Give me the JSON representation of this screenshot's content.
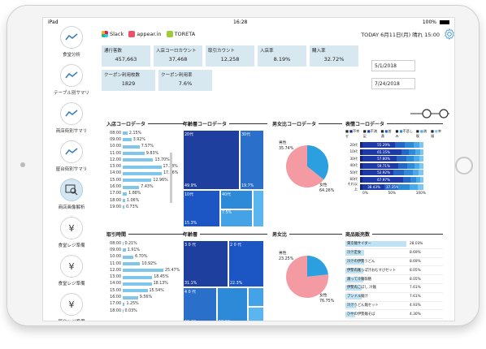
{
  "status": {
    "device": "iPad",
    "time": "16:28",
    "battery": "100%"
  },
  "sidebar": {
    "items": [
      {
        "label": "食堂分析",
        "icon": "trend-icon"
      },
      {
        "label": "テーブル別サマリ",
        "icon": "trend-icon"
      },
      {
        "label": "商店街別サマリ",
        "icon": "trend-icon"
      },
      {
        "label": "屋台街別サマリ",
        "icon": "trend-icon"
      },
      {
        "label": "商店画像解析",
        "icon": "image-search-icon",
        "active": true
      },
      {
        "label": "食堂レジ準備",
        "icon": "yen-icon"
      },
      {
        "label": "食堂レジ準備",
        "icon": "yen-icon"
      },
      {
        "label": "屋台レジ準備",
        "icon": "yen-icon"
      }
    ]
  },
  "header": {
    "brands": [
      "Slack",
      "appear.in",
      "TORETA"
    ],
    "date_text": "TODAY 6月11日(月) 晴れ 15:00"
  },
  "kpis": [
    {
      "label": "通行客数",
      "value": "457,663"
    },
    {
      "label": "入店コーロカウント",
      "value": "37,468"
    },
    {
      "label": "取引カウント",
      "value": "12,258"
    },
    {
      "label": "入店率",
      "value": "8.19%"
    },
    {
      "label": "購入率",
      "value": "32.72%"
    }
  ],
  "kpis2": [
    {
      "label": "クーポン利用枚数",
      "value": "1829"
    },
    {
      "label": "クーポン利用率",
      "value": "7.6%"
    }
  ],
  "dates": {
    "start": "5/1/2018",
    "end": "7/24/2018"
  },
  "panels": {
    "entry": {
      "title": "入店コーロデータ",
      "rows": [
        {
          "t": "08:00",
          "v": 2.15,
          "l": "2.15%"
        },
        {
          "t": "09:00",
          "v": 3.92,
          "l": "3.92%"
        },
        {
          "t": "10:00",
          "v": 7.57,
          "l": "7.57%"
        },
        {
          "t": "11:00",
          "v": 9.83,
          "l": "9.83%"
        },
        {
          "t": "12:00",
          "v": 13.7,
          "l": "13.70%"
        },
        {
          "t": "13:00",
          "v": 17.38,
          "l": "17.38%"
        },
        {
          "t": "14:00",
          "v": 17.56,
          "l": "17.56%"
        },
        {
          "t": "15:00",
          "v": 12.96,
          "l": "12.96%"
        },
        {
          "t": "16:00",
          "v": 7.43,
          "l": "7.43%"
        },
        {
          "t": "17:00",
          "v": 1.88,
          "l": "1.88%"
        },
        {
          "t": "18:00",
          "v": 1.06,
          "l": "1.06%"
        },
        {
          "t": "19:00",
          "v": 0.73,
          "l": "0.73%"
        }
      ]
    },
    "trans": {
      "title": "取引時間",
      "rows": [
        {
          "t": "08:00",
          "v": 0.21,
          "l": "0.21%"
        },
        {
          "t": "09:00",
          "v": 1.91,
          "l": "1.91%"
        },
        {
          "t": "10:00",
          "v": 6.7,
          "l": "6.70%"
        },
        {
          "t": "11:00",
          "v": 10.92,
          "l": "10.92%"
        },
        {
          "t": "12:00",
          "v": 25.47,
          "l": "25.47%"
        },
        {
          "t": "13:00",
          "v": 18.45,
          "l": "18.45%"
        },
        {
          "t": "14:00",
          "v": 18.13,
          "l": "18.13%"
        },
        {
          "t": "15:00",
          "v": 15.54,
          "l": "15.54%"
        },
        {
          "t": "16:00",
          "v": 9.56,
          "l": "9.56%"
        },
        {
          "t": "17:00",
          "v": 1.25,
          "l": "1.25%"
        },
        {
          "t": "18:00",
          "v": 0.03,
          "l": "0.03%"
        }
      ]
    },
    "age_entry": {
      "title": "年齢層コーロデータ",
      "cells": [
        {
          "label": "20代",
          "value": "49.9%",
          "color": "#1f3f9e"
        },
        {
          "label": "30代",
          "value": "19.7%",
          "color": "#2a6fc9"
        },
        {
          "label": "10代",
          "value": "15.3%",
          "color": "#1c55c4"
        },
        {
          "label": "40代",
          "value": "",
          "color": "#2d8ad8"
        },
        {
          "label": "7.5%",
          "value": "",
          "color": "#44a3e6"
        },
        {
          "label": "",
          "value": "",
          "color": "#5bb5ef"
        }
      ]
    },
    "age": {
      "title": "年齢層",
      "cells": [
        {
          "label": "3 0 代",
          "value": "31.1%",
          "color": "#1f3f9e"
        },
        {
          "label": "2 0 代",
          "value": "22.3%",
          "color": "#1c55c4"
        },
        {
          "label": "4 0 代",
          "value": "20.4%",
          "color": "#2a6fc9"
        },
        {
          "label": "",
          "value": "18.2%",
          "color": "#2d8ad8"
        },
        {
          "label": "",
          "value": "",
          "color": "#44a3e6"
        },
        {
          "label": "",
          "value": "",
          "color": "#5bb5ef"
        }
      ]
    },
    "gender_entry": {
      "title": "男女比コーロデータ",
      "male": {
        "label": "男性",
        "value": "35.74%",
        "pct": 35.74
      },
      "female": {
        "label": "女性",
        "value": "64.26%",
        "pct": 64.26
      }
    },
    "gender": {
      "title": "男女比",
      "male": {
        "label": "男性",
        "value": "23.25%",
        "pct": 23.25
      },
      "female": {
        "label": "女性",
        "value": "76.75%",
        "pct": 76.75
      }
    },
    "emotion": {
      "title": "表情コーロデータ",
      "legend": [
        "不幸せ",
        "不満足",
        "普通",
        "不悲しみ",
        "満喫",
        "幸福"
      ],
      "rows": [
        {
          "label": "20代",
          "value": "55.29%",
          "pct": 55.29
        },
        {
          "label": "10代",
          "value": "65.15%",
          "pct": 65.15
        },
        {
          "label": "30代",
          "value": "57.80%",
          "pct": 57.8
        },
        {
          "label": "40代",
          "value": "59.71%",
          "pct": 59.71
        },
        {
          "label": "50代",
          "value": "52.92%",
          "pct": 52.92
        },
        {
          "label": "60代",
          "value": "67.97%",
          "pct": 67.97
        },
        {
          "label": "それ以上",
          "value": "38.43%",
          "pct": 38.43,
          "value2": "37.35%"
        }
      ],
      "axis": [
        "0%",
        "50%",
        "100%"
      ]
    },
    "products": {
      "title": "商品販売数",
      "rows": [
        {
          "label": "東京麺サイダー",
          "value": "28.03%",
          "pct": 28.03
        },
        {
          "label": "冷汁定食",
          "value": "8.69%",
          "pct": 8.69
        },
        {
          "label": "冷汁の伊勢うどん",
          "value": "8.69%",
          "pct": 8.69
        },
        {
          "label": "伊勢肉尾っぽ汁おむすびセット",
          "value": "8.05%",
          "pct": 8.05
        },
        {
          "label": "鶏って冷麺御膳",
          "value": "8.05%",
          "pct": 8.05
        },
        {
          "label": "伊勢肉こぼし 冷麺",
          "value": "7.61%",
          "pct": 7.61
        },
        {
          "label": "ブンドル麺汁",
          "value": "7.61%",
          "pct": 7.61
        },
        {
          "label": "冷汁うどん麺セット",
          "value": "4.93%",
          "pct": 4.93
        },
        {
          "label": "ひやの伊勢麺そば",
          "value": "4.30%",
          "pct": 4.3
        }
      ]
    }
  }
}
